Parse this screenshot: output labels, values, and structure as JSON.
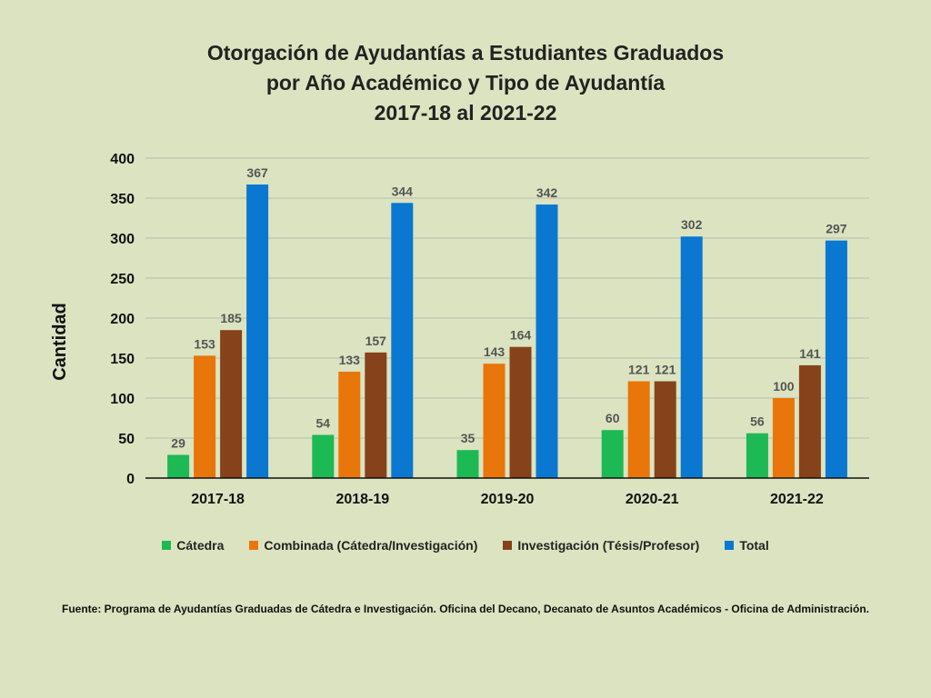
{
  "chart_data": {
    "type": "bar",
    "title_lines": [
      "Otorgación de Ayudantías a Estudiantes Graduados",
      "por Año Académico y Tipo de Ayudantía",
      "2017-18 al 2021-22"
    ],
    "xlabel": "",
    "ylabel": "Cantidad",
    "ylim": [
      0,
      400
    ],
    "yticks": [
      0,
      50,
      100,
      150,
      200,
      250,
      300,
      350,
      400
    ],
    "grid": true,
    "legend_position": "bottom",
    "categories": [
      "2017-18",
      "2018-19",
      "2019-20",
      "2020-21",
      "2021-22"
    ],
    "series": [
      {
        "name": "Cátedra",
        "color": "#1db954",
        "values": [
          29,
          54,
          35,
          60,
          56
        ]
      },
      {
        "name": "Combinada (Cátedra/Investigación)",
        "color": "#e8760a",
        "values": [
          153,
          133,
          143,
          121,
          100
        ]
      },
      {
        "name": "Investigación (Tésis/Profesor)",
        "color": "#86421a",
        "values": [
          185,
          157,
          164,
          121,
          141
        ]
      },
      {
        "name": "Total",
        "color": "#0a78d1",
        "values": [
          367,
          344,
          342,
          302,
          297
        ]
      }
    ]
  },
  "footer": {
    "source": "Fuente: Programa de Ayudantías Graduadas de Cátedra e Investigación. Oficina del Decano, Decanato de Asuntos Académicos - Oficina de Administración."
  }
}
